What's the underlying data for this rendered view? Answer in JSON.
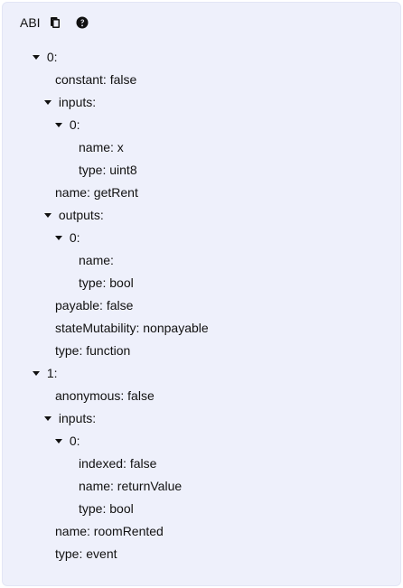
{
  "header": {
    "title": "ABI",
    "icons": [
      "copy-icon",
      "help-icon"
    ]
  },
  "tree": {
    "n0_label": "0:",
    "n0_constant": "constant: false",
    "n0_inputs_label": "inputs:",
    "n0_inputs_0_label": "0:",
    "n0_inputs_0_name": "name: x",
    "n0_inputs_0_type": "type: uint8",
    "n0_name": "name: getRent",
    "n0_outputs_label": "outputs:",
    "n0_outputs_0_label": "0:",
    "n0_outputs_0_name": "name:",
    "n0_outputs_0_type": "type: bool",
    "n0_payable": "payable: false",
    "n0_stateMutability": "stateMutability: nonpayable",
    "n0_type": "type: function",
    "n1_label": "1:",
    "n1_anonymous": "anonymous: false",
    "n1_inputs_label": "inputs:",
    "n1_inputs_0_label": "0:",
    "n1_inputs_0_indexed": "indexed: false",
    "n1_inputs_0_name": "name: returnValue",
    "n1_inputs_0_type": "type: bool",
    "n1_name": "name: roomRented",
    "n1_type": "type: event"
  }
}
